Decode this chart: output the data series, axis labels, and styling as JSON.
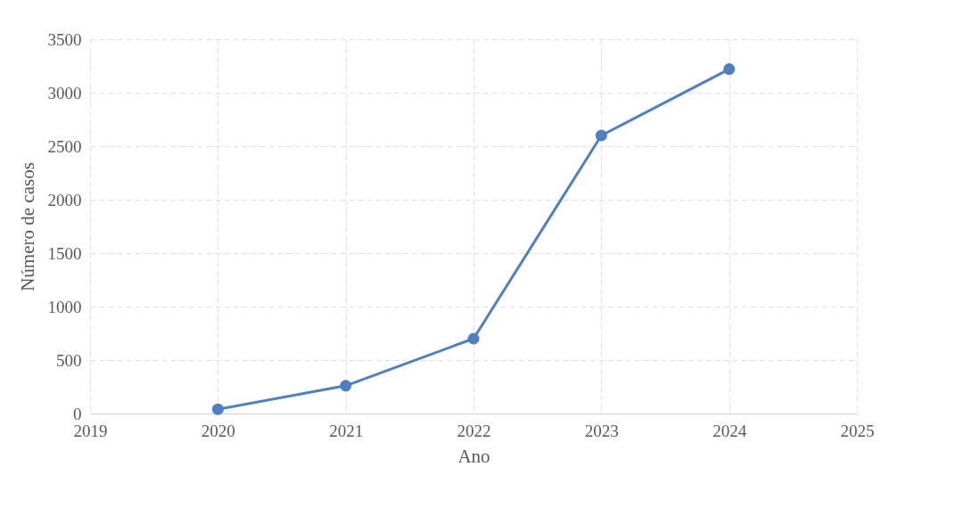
{
  "chart_data": {
    "type": "line",
    "xlabel": "Ano",
    "ylabel": "Número de casos",
    "x": [
      2020,
      2021,
      2022,
      2023,
      2024
    ],
    "series": [
      {
        "color": "#4f7fbf",
        "values": [
          40,
          260,
          700,
          2600,
          3220
        ]
      }
    ],
    "xlim": [
      2019,
      2025
    ],
    "xticks": [
      2019,
      2020,
      2021,
      2022,
      2023,
      2024,
      2025
    ],
    "ylim": [
      0,
      3500
    ],
    "yticks": [
      0,
      500,
      1000,
      1500,
      2000,
      2500,
      3000,
      3500
    ],
    "grid": true,
    "marker": "circle",
    "line_style": "solid"
  }
}
